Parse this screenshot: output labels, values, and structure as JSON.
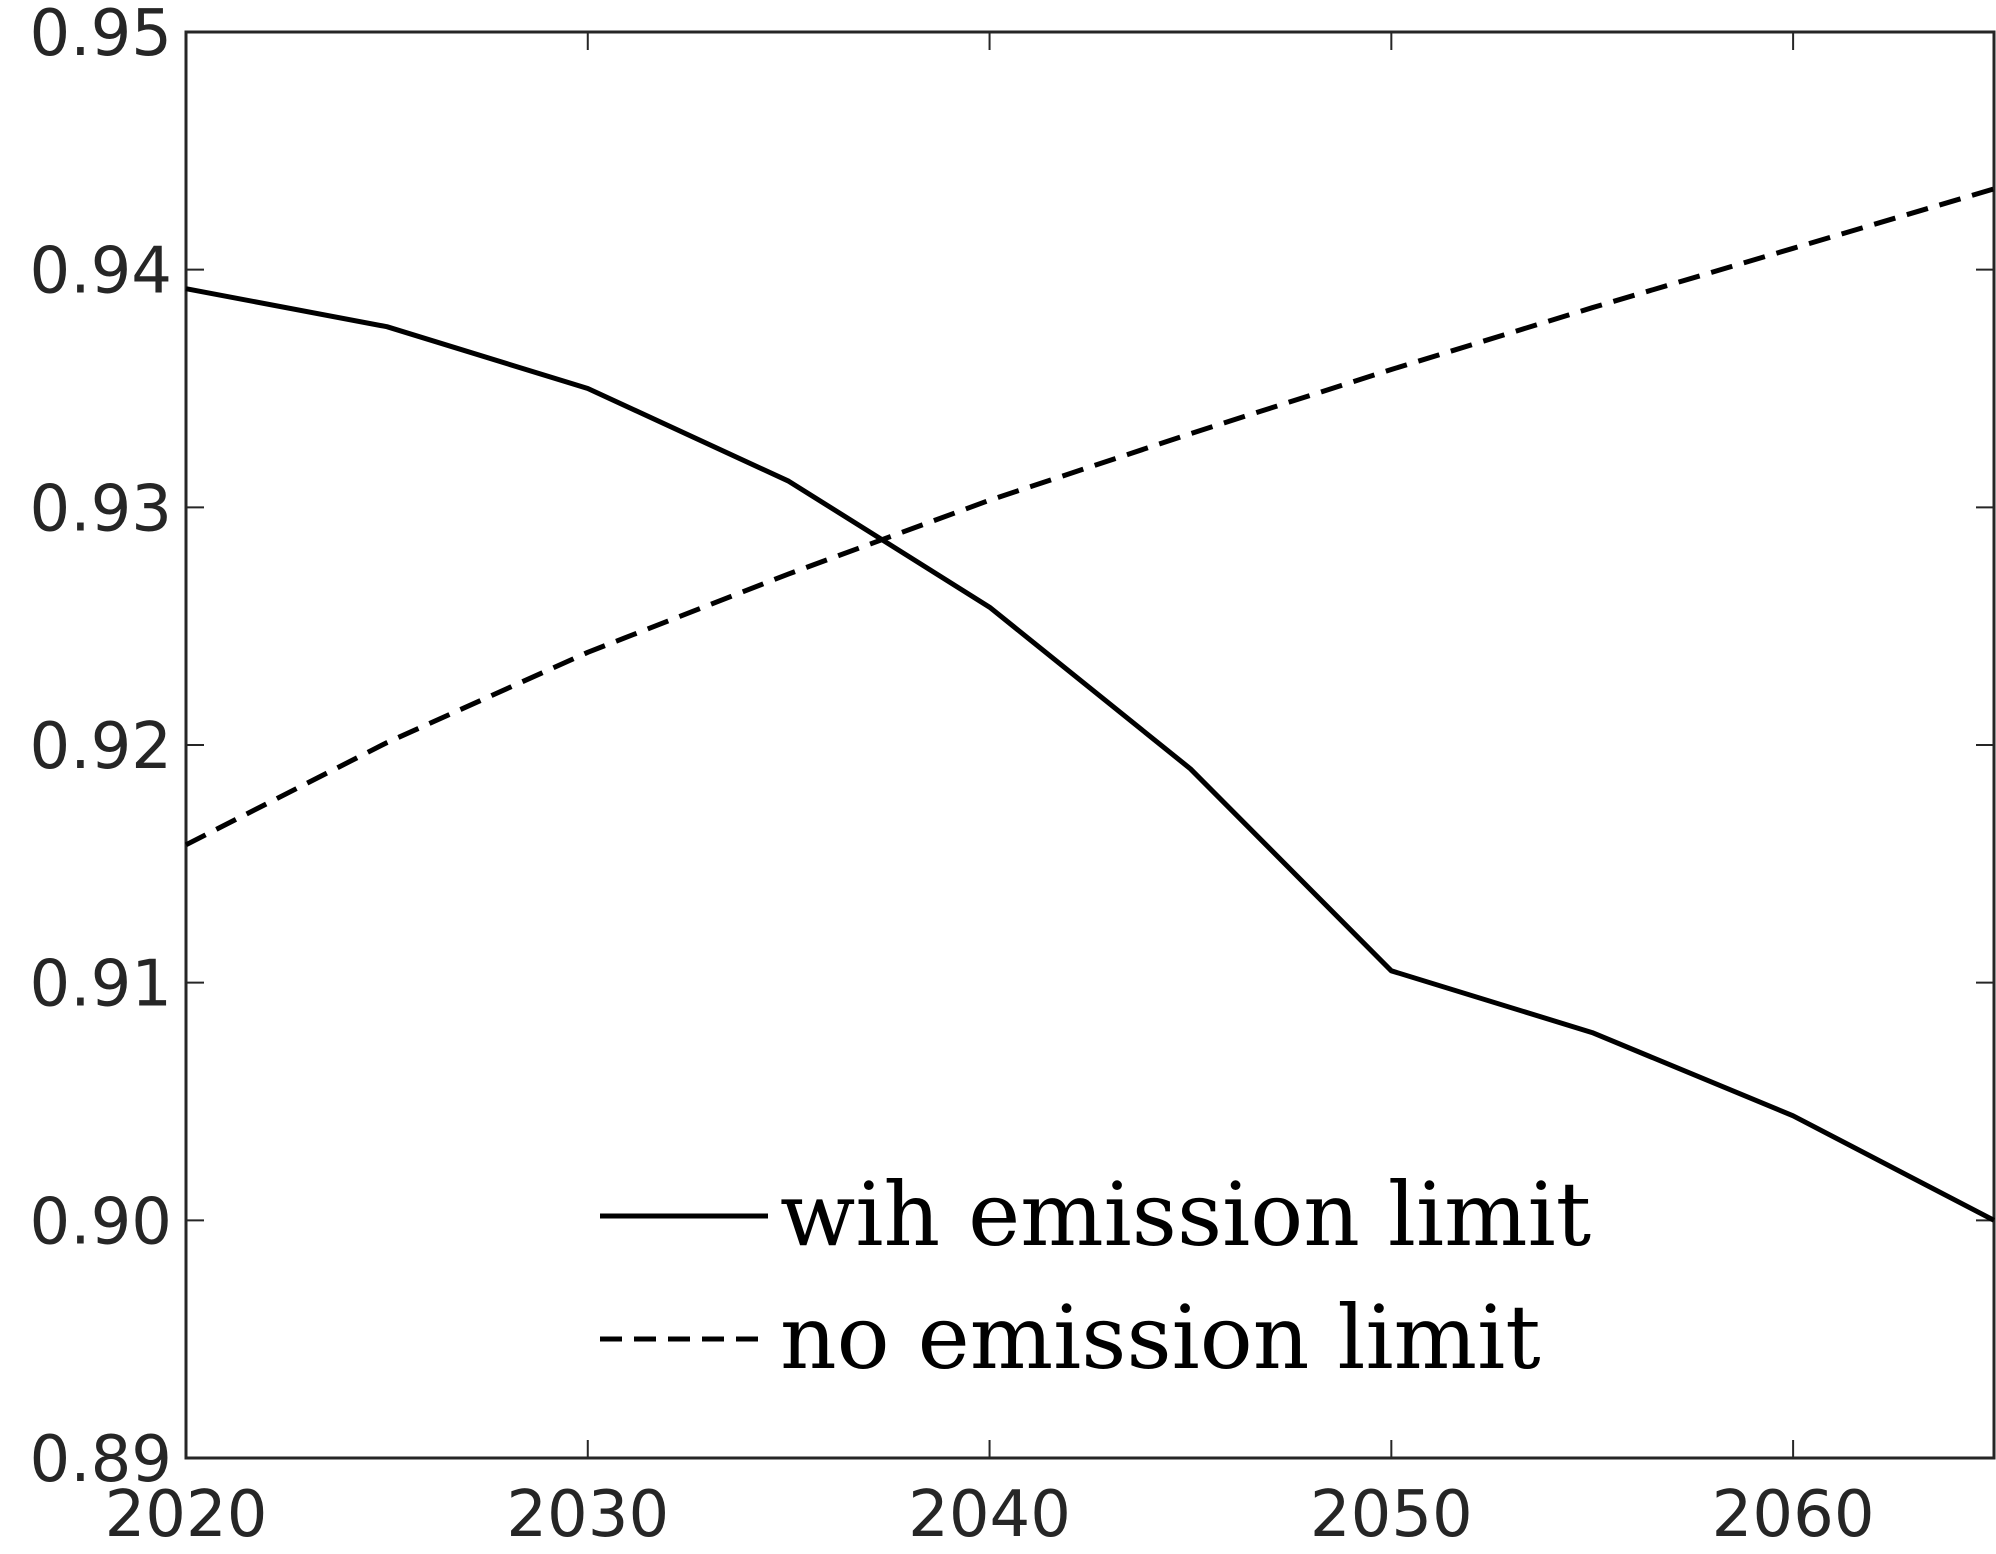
{
  "chart_data": {
    "type": "line",
    "title": "",
    "xlabel": "",
    "ylabel": "",
    "xlim": [
      2020,
      2065
    ],
    "ylim": [
      0.89,
      0.95
    ],
    "x_ticks": [
      2020,
      2030,
      2040,
      2050,
      2060
    ],
    "x_tick_labels": [
      "2020",
      "2030",
      "2040",
      "2050",
      "2060"
    ],
    "y_ticks": [
      0.89,
      0.9,
      0.91,
      0.92,
      0.93,
      0.94,
      0.95
    ],
    "y_tick_labels": [
      "0.89",
      "0.90",
      "0.91",
      "0.92",
      "0.93",
      "0.94",
      "0.95"
    ],
    "grid": false,
    "legend_position": "bottom-center",
    "x": [
      2020,
      2025,
      2030,
      2035,
      2040,
      2045,
      2050,
      2055,
      2060,
      2065
    ],
    "series": [
      {
        "name": "wih emission limit",
        "line_style": "solid",
        "color": "#000000",
        "values": [
          0.9392,
          0.9376,
          0.935,
          0.9311,
          0.9258,
          0.919,
          0.9105,
          0.9079,
          0.9044,
          0.9
        ]
      },
      {
        "name": "no emission limit",
        "line_style": "dashed",
        "color": "#000000",
        "values": [
          0.9158,
          0.9201,
          0.9239,
          0.9272,
          0.9303,
          0.9331,
          0.9358,
          0.9384,
          0.9409,
          0.9434
        ]
      }
    ]
  }
}
